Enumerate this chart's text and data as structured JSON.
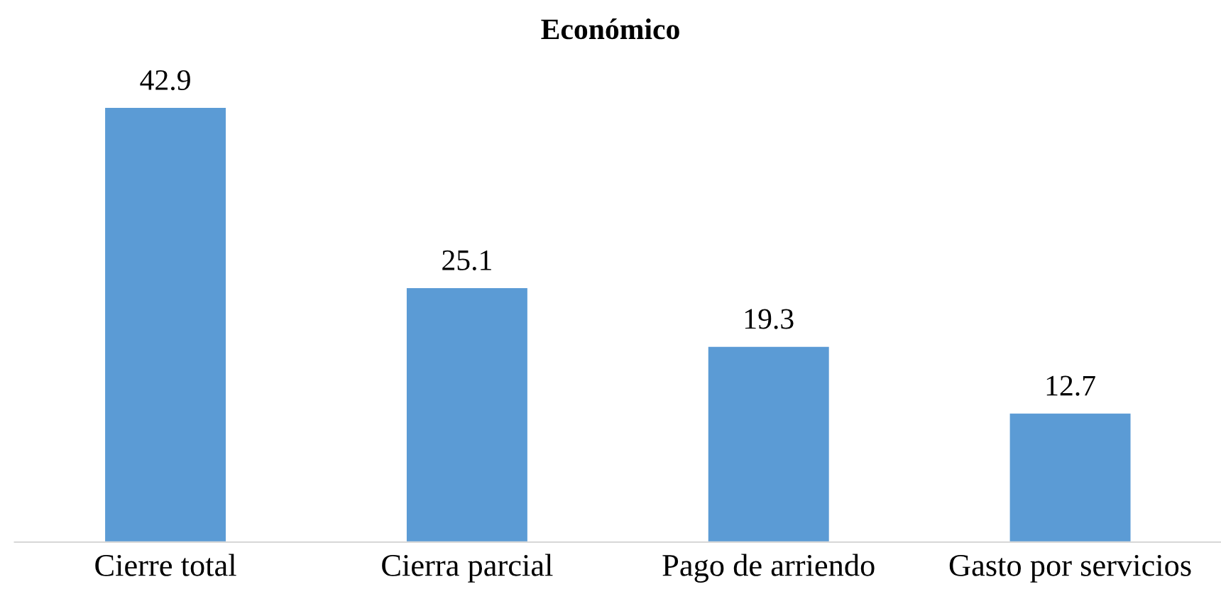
{
  "chart_data": {
    "type": "bar",
    "title": "Económico",
    "categories": [
      "Cierre total",
      "Cierra parcial",
      "Pago de arriendo",
      "Gasto por servicios"
    ],
    "values": [
      42.9,
      25.1,
      19.3,
      12.7
    ],
    "color": "#5b9bd5",
    "data_labels": true
  }
}
